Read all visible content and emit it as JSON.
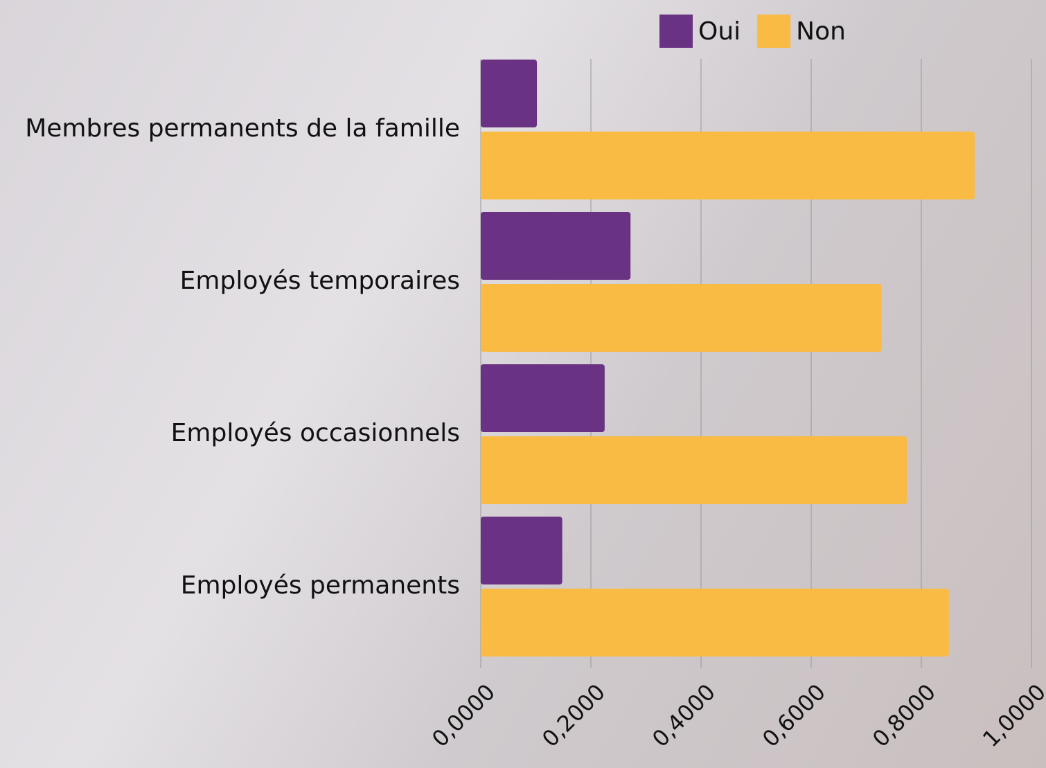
{
  "chart_data": {
    "type": "hbar",
    "categories": [
      "Membres permanents de la famille",
      "Employés temporaires",
      "Employés occasionnels",
      "Employés permanents"
    ],
    "series": [
      {
        "name": "Oui",
        "color": "#693282",
        "values": [
          0.102,
          0.272,
          0.225,
          0.148
        ]
      },
      {
        "name": "Non",
        "color": "#f9bb43",
        "values": [
          0.897,
          0.728,
          0.774,
          0.85
        ]
      }
    ],
    "xlim": [
      0,
      1
    ],
    "xticks": [
      {
        "value": 0,
        "label": "0,0000"
      },
      {
        "value": 0.2,
        "label": "0,2000"
      },
      {
        "value": 0.4,
        "label": "0,4000"
      },
      {
        "value": 0.6,
        "label": "0,6000"
      },
      {
        "value": 0.8,
        "label": "0,8000"
      },
      {
        "value": 1,
        "label": "1,0000"
      }
    ],
    "grid": true,
    "legend": "top"
  }
}
